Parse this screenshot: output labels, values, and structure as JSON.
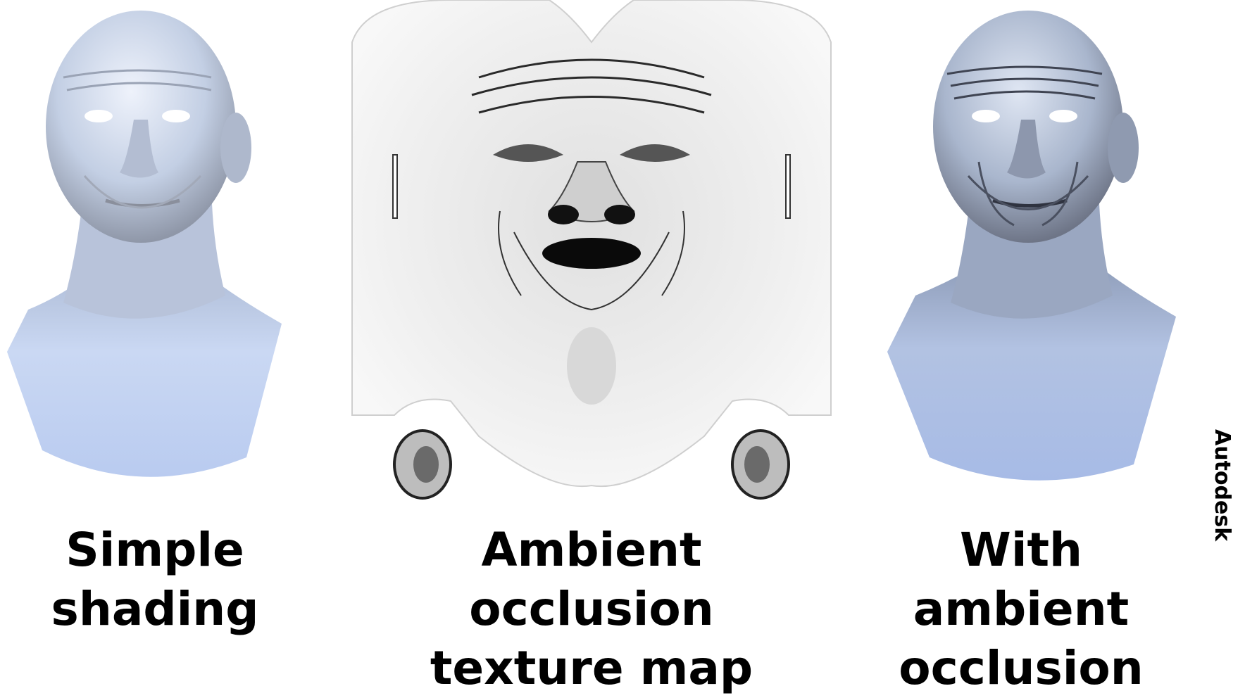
{
  "captions": {
    "left": [
      "Simple",
      "shading"
    ],
    "middle": [
      "Ambient occlusion",
      "texture map"
    ],
    "right": [
      "With ambient",
      "occlusion"
    ]
  },
  "credit": "Autodesk",
  "colors": {
    "skin_base": "#c9d6ef",
    "skin_light": "#eef2fb",
    "skin_shadow": "#8f97a8",
    "neck_blue": "#b9cbf0",
    "ao_paper": "#f2f2f2",
    "ao_dark": "#151515"
  },
  "panels": {
    "left": {
      "subject": "head-bust",
      "style": "simple-shading"
    },
    "middle": {
      "subject": "uv-unwrapped-face",
      "style": "ambient-occlusion-map"
    },
    "right": {
      "subject": "head-bust",
      "style": "ambient-occlusion-shading"
    }
  }
}
